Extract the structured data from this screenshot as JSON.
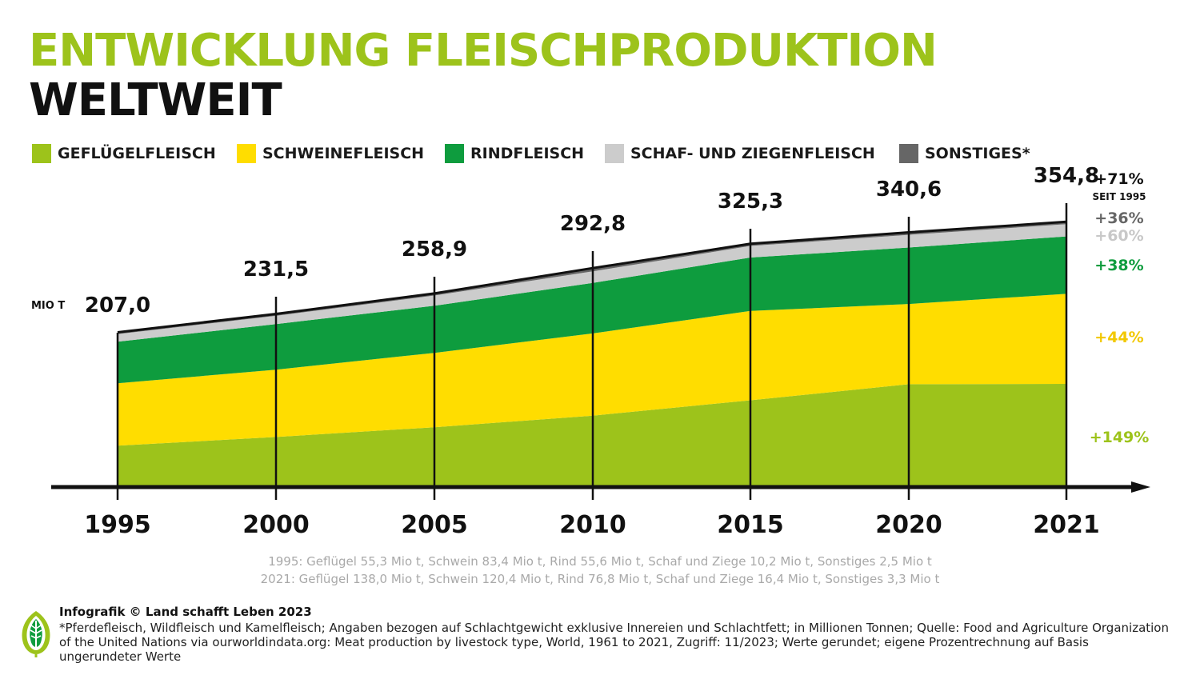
{
  "title": {
    "line1": "ENTWICKLUNG FLEISCHPRODUKTION",
    "line2": "WELTWEIT"
  },
  "colors": {
    "accent_green": "#9dc31b",
    "title_dark": "#111111"
  },
  "legend": [
    {
      "label": "GEFLÜGELFLEISCH",
      "color": "#9dc31b"
    },
    {
      "label": "SCHWEINEFLEISCH",
      "color": "#ffdd00"
    },
    {
      "label": "RINDFLEISCH",
      "color": "#0e9c3e"
    },
    {
      "label": "SCHAF- UND ZIEGENFLEISCH",
      "color": "#cccccc"
    },
    {
      "label": "SONSTIGES*",
      "color": "#666666"
    }
  ],
  "chart_data": {
    "type": "area",
    "stacked": true,
    "unit_label": "MIO T",
    "x": [
      "1995",
      "2000",
      "2005",
      "2010",
      "2015",
      "2020",
      "2021"
    ],
    "series": [
      {
        "name": "GEFLÜGELFLEISCH",
        "color": "#9dc31b",
        "values": [
          55.3,
          67.0,
          80.0,
          95.5,
          116.0,
          137.5,
          138.0
        ]
      },
      {
        "name": "SCHWEINEFLEISCH",
        "color": "#ffdd00",
        "values": [
          83.4,
          90.0,
          99.5,
          110.0,
          119.5,
          107.3,
          120.4
        ]
      },
      {
        "name": "RINDFLEISCH",
        "color": "#0e9c3e",
        "values": [
          55.6,
          61.0,
          63.0,
          67.5,
          71.5,
          75.5,
          76.8
        ]
      },
      {
        "name": "SCHAF- UND ZIEGENFLEISCH",
        "color": "#cccccc",
        "values": [
          10.2,
          11.0,
          13.6,
          15.5,
          15.5,
          17.0,
          16.4
        ]
      },
      {
        "name": "SONSTIGES*",
        "color": "#666666",
        "values": [
          2.5,
          2.5,
          2.8,
          4.3,
          2.8,
          3.3,
          3.3
        ]
      }
    ],
    "totals": [
      "207,0",
      "231,5",
      "258,9",
      "292,8",
      "325,3",
      "340,6",
      "354,8"
    ],
    "total_values": [
      207.0,
      231.5,
      258.9,
      292.8,
      325.3,
      340.6,
      354.8
    ],
    "change_labels": {
      "total": "+71%",
      "since": "SEIT 1995",
      "series": [
        {
          "name": "SONSTIGES*",
          "label": "+36%",
          "color": "#666666"
        },
        {
          "name": "SCHAF- UND ZIEGENFLEISCH",
          "label": "+60%",
          "color": "#c8c8c8"
        },
        {
          "name": "RINDFLEISCH",
          "label": "+38%",
          "color": "#0e9c3e"
        },
        {
          "name": "SCHWEINEFLEISCH",
          "label": "+44%",
          "color": "#f2c800"
        },
        {
          "name": "GEFLÜGELFLEISCH",
          "label": "+149%",
          "color": "#9dc31b"
        }
      ]
    }
  },
  "notes": {
    "line1995": "1995: Geflügel 55,3 Mio t, Schwein 83,4 Mio t, Rind 55,6 Mio t, Schaf und Ziege 10,2 Mio t, Sonstiges 2,5 Mio t",
    "line2021": "2021: Geflügel 138,0 Mio t, Schwein 120,4 Mio t, Rind 76,8 Mio t, Schaf und Ziege 16,4 Mio t, Sonstiges 3,3 Mio t"
  },
  "footer": {
    "credit": "Infografik © Land schafft Leben 2023",
    "note": "*Pferdefleisch, Wildfleisch und Kamelfleisch; Angaben bezogen auf Schlachtgewicht exklusive Innereien und Schlachtfett; in Millionen Tonnen; Quelle: Food and Agriculture Organization of the United Nations via ourworldindata.org: Meat production by livestock type, World, 1961 to 2021, Zugriff: 11/2023; Werte gerundet; eigene Prozentrechnung auf Basis ungerundeter Werte"
  }
}
